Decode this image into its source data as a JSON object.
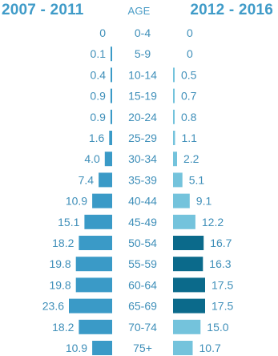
{
  "chart_data": {
    "type": "bar",
    "layout": "back-to-back",
    "left_title": "2007 - 2011",
    "center_title": "AGE",
    "right_title": "2012 - 2016",
    "categories": [
      "0-4",
      "5-9",
      "10-14",
      "15-19",
      "20-24",
      "25-29",
      "30-34",
      "35-39",
      "40-44",
      "45-49",
      "50-54",
      "55-59",
      "60-64",
      "65-69",
      "70-74",
      "75+"
    ],
    "series": [
      {
        "name": "2007 - 2011",
        "side": "left",
        "color": "#3a9ac7",
        "values": [
          0,
          0.1,
          0.4,
          0.9,
          0.9,
          1.6,
          4.0,
          7.4,
          10.9,
          15.1,
          18.2,
          19.8,
          19.8,
          23.6,
          18.2,
          10.9
        ]
      },
      {
        "name": "2012 - 2016",
        "side": "right",
        "color": "#74c3dc",
        "highlight_color": "#0b6a8b",
        "values": [
          0,
          0,
          0.5,
          0.7,
          0.8,
          1.1,
          2.2,
          5.1,
          9.1,
          12.2,
          16.7,
          16.3,
          17.5,
          17.5,
          15.0,
          10.7
        ],
        "highlighted": [
          false,
          false,
          false,
          false,
          false,
          false,
          false,
          false,
          false,
          false,
          true,
          true,
          true,
          true,
          false,
          false
        ]
      }
    ],
    "label_format": "one-decimal-except-zero"
  }
}
